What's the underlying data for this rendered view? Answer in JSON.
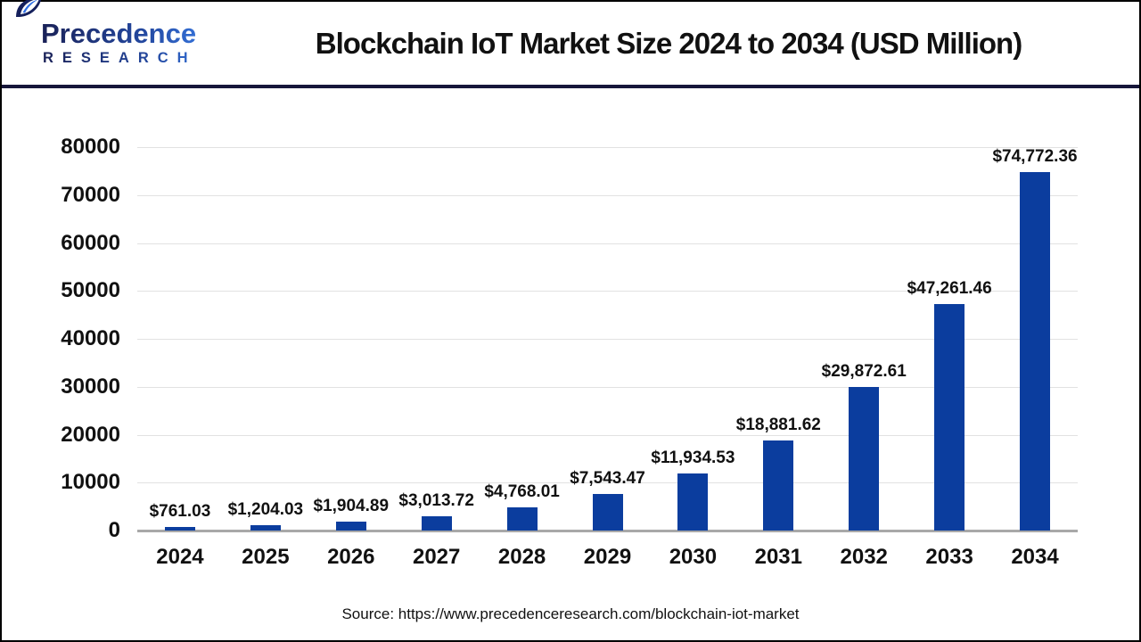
{
  "header": {
    "logo": {
      "line1": "Precedence",
      "line2": "RESEARCH",
      "icon": "leaf-icon"
    },
    "title": "Blockchain IoT Market Size 2024 to 2034 (USD Million)"
  },
  "chart_data": {
    "type": "bar",
    "title": "Blockchain IoT Market Size 2024 to 2034 (USD Million)",
    "categories": [
      "2024",
      "2025",
      "2026",
      "2027",
      "2028",
      "2029",
      "2030",
      "2031",
      "2032",
      "2033",
      "2034"
    ],
    "values": [
      761.03,
      1204.03,
      1904.89,
      3013.72,
      4768.01,
      7543.47,
      11934.53,
      18881.62,
      29872.61,
      47261.46,
      74772.36
    ],
    "value_labels": [
      "$761.03",
      "$1,204.03",
      "$1,904.89",
      "$3,013.72",
      "$4,768.01",
      "$7,543.47",
      "$11,934.53",
      "$18,881.62",
      "$29,872.61",
      "$47,261.46",
      "$74,772.36"
    ],
    "xlabel": "",
    "ylabel": "",
    "ylim": [
      0,
      80000
    ],
    "yticks": [
      0,
      10000,
      20000,
      30000,
      40000,
      50000,
      60000,
      70000,
      80000
    ],
    "grid": true,
    "legend": "none",
    "bar_color": "#0b3d9e",
    "gridline_color": "#e2e2e2",
    "axisline_color": "#a9a9a9"
  },
  "footer": {
    "source": "Source: https://www.precedenceresearch.com/blockchain-iot-market"
  },
  "colors": {
    "header_divider": "#16163a",
    "logo_dark": "#1a2157",
    "logo_light": "#3b82f0",
    "text": "#111111",
    "background": "#ffffff"
  }
}
